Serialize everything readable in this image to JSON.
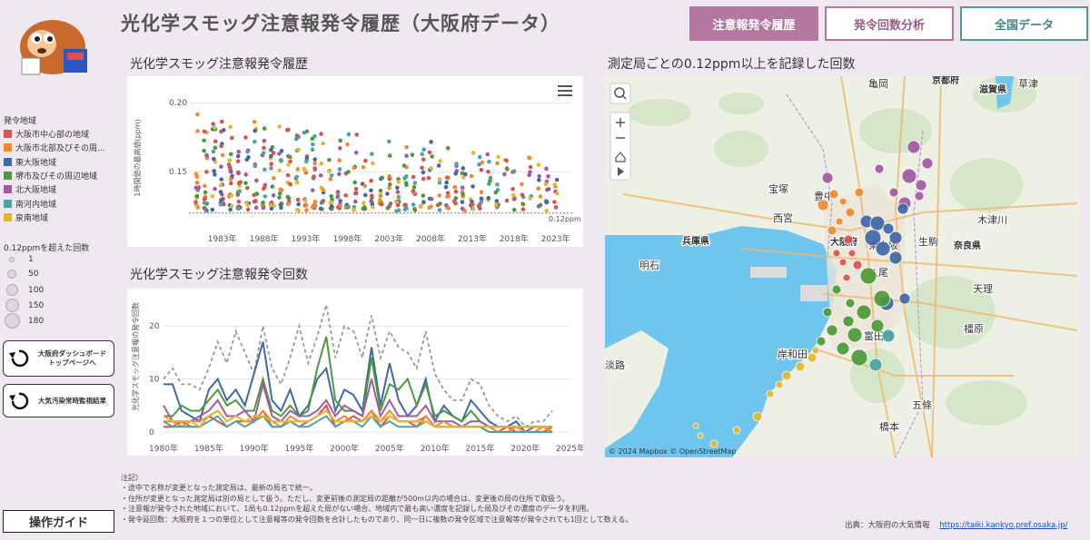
{
  "header": {
    "title": "光化学スモッグ注意報発令履歴（大阪府データ）",
    "nav": [
      "注意報発令履歴",
      "発令回数分析",
      "全国データ"
    ]
  },
  "legend": {
    "region_title": "発令地域",
    "regions": [
      {
        "label": "大阪市中心部の地域",
        "color": "#d9534f"
      },
      {
        "label": "大阪市北部及びその周...",
        "color": "#f0892f"
      },
      {
        "label": "東大阪地域",
        "color": "#3f68a8"
      },
      {
        "label": "堺市及びその周辺地域",
        "color": "#4e9a3a"
      },
      {
        "label": "北大阪地域",
        "color": "#a25aa2"
      },
      {
        "label": "南河内地域",
        "color": "#4aa6a3"
      },
      {
        "label": "泉南地域",
        "color": "#e6b72e"
      }
    ],
    "size_title": "0.12ppmを超えた回数",
    "sizes": [
      "1",
      "50",
      "100",
      "150",
      "180"
    ]
  },
  "side_buttons": {
    "dashboard": "大阪府ダッシュボード\nトップページへ",
    "monitoring": "大気汚染常時監視結果",
    "guide": "操作ガイド"
  },
  "scatter": {
    "title": "光化学スモッグ注意報発令履歴",
    "ylabel": "1時間値の最高値(ppm)",
    "threshold_label": "0.12ppm"
  },
  "line": {
    "title": "光化学スモッグ注意報発令回数",
    "ylabel": "光化学スモッグ注意報の発令回数"
  },
  "map": {
    "title": "測定局ごとの0.12ppm以上を記録した回数",
    "attribution": "© 2024 Mapbox  © OpenStreetMap",
    "places": [
      {
        "label": "亀岡",
        "bold": false
      },
      {
        "label": "京都府",
        "bold": true
      },
      {
        "label": "滋賀県",
        "bold": true
      },
      {
        "label": "草津",
        "bold": false
      },
      {
        "label": "宝塚",
        "bold": false
      },
      {
        "label": "豊中",
        "bold": false
      },
      {
        "label": "西宮",
        "bold": false
      },
      {
        "label": "兵庫県",
        "bold": true
      },
      {
        "label": "大阪府",
        "bold": true
      },
      {
        "label": "東大阪",
        "bold": false
      },
      {
        "label": "生駒",
        "bold": false
      },
      {
        "label": "奈良県",
        "bold": true
      },
      {
        "label": "木津川",
        "bold": false
      },
      {
        "label": "明石",
        "bold": false
      },
      {
        "label": "八尾",
        "bold": false
      },
      {
        "label": "天理",
        "bold": false
      },
      {
        "label": "橿原",
        "bold": false
      },
      {
        "label": "岸和田",
        "bold": false
      },
      {
        "label": "富田林",
        "bold": false
      },
      {
        "label": "淡路",
        "bold": false
      },
      {
        "label": "五條",
        "bold": false
      },
      {
        "label": "橋本",
        "bold": false
      }
    ]
  },
  "notes": [
    "注記）",
    "・途中で名称が変更となった測定局は、最新の局名で統一。",
    "・住所が変更となった測定局は別の局として扱う。ただし、変更前後の測定局の距離が500m以内の場合は、変更後の局の住所で取扱う。",
    "・注意報が発令された地域において、1局も0.12ppmを超えた局がない場合、地域内で最も高い濃度を記録した局及びその濃度のデータを利用。",
    "・発令延回数：大阪府を１つの単位として注意報等の発令回数を合計したものであり、同一日に複数の発令区域で注意報等が発令されても1回として数える。"
  ],
  "source": {
    "label": "出典：大阪府の大気情報",
    "url": "https://taiki.kankyo.pref.osaka.jp/"
  },
  "chart_data": [
    {
      "type": "scatter",
      "title": "光化学スモッグ注意報発令履歴",
      "ylabel": "1時間値の最高値(ppm)",
      "x_ticks": [
        "1983年",
        "1988年",
        "1993年",
        "1998年",
        "2003年",
        "2008年",
        "2013年",
        "2018年",
        "2023年"
      ],
      "xlim": [
        1979,
        2025
      ],
      "y_ticks": [
        0.15,
        0.2
      ],
      "ylim": [
        0.11,
        0.21
      ],
      "threshold": 0.12
    },
    {
      "type": "line",
      "title": "光化学スモッグ注意報発令回数",
      "ylabel": "光化学スモッグ注意報の発令回数",
      "x_ticks": [
        "1980年",
        "1985年",
        "1990年",
        "1995年",
        "2000年",
        "2005年",
        "2010年",
        "2015年",
        "2020年",
        "2025年"
      ],
      "y_ticks": [
        0,
        10,
        20
      ],
      "ylim": [
        0,
        25
      ],
      "x": [
        1980,
        1981,
        1982,
        1983,
        1984,
        1985,
        1986,
        1987,
        1988,
        1989,
        1990,
        1991,
        1992,
        1993,
        1994,
        1995,
        1996,
        1997,
        1998,
        1999,
        2000,
        2001,
        2002,
        2003,
        2004,
        2005,
        2006,
        2007,
        2008,
        2009,
        2010,
        2011,
        2012,
        2013,
        2014,
        2015,
        2016,
        2017,
        2018,
        2019,
        2020,
        2021,
        2022,
        2023
      ],
      "series": [
        {
          "color": "#999999",
          "dashed": true,
          "values": [
            10,
            12,
            9,
            9,
            8,
            12,
            17,
            13,
            19,
            15,
            11,
            20,
            12,
            9,
            14,
            20,
            13,
            18,
            24,
            14,
            20,
            19,
            14,
            22,
            14,
            19,
            16,
            15,
            12,
            19,
            11,
            8,
            6,
            6,
            10,
            9,
            5,
            3,
            2,
            3,
            1,
            2,
            2,
            4
          ]
        },
        {
          "color": "#3f68a8",
          "values": [
            9,
            9,
            4,
            3,
            2,
            8,
            10,
            6,
            8,
            5,
            11,
            17,
            6,
            4,
            8,
            3,
            5,
            10,
            12,
            4,
            8,
            7,
            4,
            16,
            5,
            13,
            6,
            3,
            5,
            10,
            2,
            5,
            3,
            2,
            6,
            4,
            2,
            1,
            1,
            2,
            0,
            1,
            1,
            1
          ]
        },
        {
          "color": "#4e9a3a",
          "values": [
            3,
            3,
            5,
            4,
            4,
            6,
            8,
            5,
            6,
            4,
            4,
            10,
            4,
            3,
            5,
            3,
            4,
            12,
            18,
            6,
            4,
            4,
            3,
            14,
            4,
            9,
            8,
            10,
            5,
            9,
            3,
            4,
            3,
            2,
            4,
            2,
            1,
            1,
            1,
            1,
            1,
            1,
            1,
            1
          ]
        },
        {
          "color": "#a25aa2",
          "values": [
            5,
            2,
            2,
            2,
            3,
            4,
            6,
            3,
            3,
            4,
            2,
            9,
            3,
            2,
            4,
            3,
            3,
            4,
            6,
            3,
            5,
            4,
            3,
            10,
            3,
            6,
            3,
            3,
            3,
            5,
            2,
            2,
            2,
            1,
            2,
            2,
            1,
            1,
            1,
            1,
            0,
            1,
            1,
            1
          ]
        },
        {
          "color": "#d9534f",
          "values": [
            1,
            1,
            2,
            1,
            1,
            3,
            2,
            1,
            2,
            2,
            2,
            4,
            1,
            1,
            2,
            1,
            2,
            3,
            5,
            1,
            2,
            3,
            2,
            4,
            1,
            3,
            2,
            2,
            1,
            3,
            1,
            1,
            1,
            1,
            1,
            1,
            0,
            0,
            1,
            0,
            0,
            0,
            0,
            1
          ]
        },
        {
          "color": "#f0892f",
          "values": [
            2,
            2,
            1,
            2,
            2,
            3,
            4,
            2,
            3,
            2,
            2,
            4,
            2,
            1,
            3,
            2,
            2,
            3,
            4,
            2,
            3,
            2,
            2,
            4,
            2,
            4,
            2,
            2,
            2,
            3,
            1,
            2,
            1,
            1,
            1,
            1,
            1,
            0,
            0,
            1,
            0,
            0,
            1,
            0
          ]
        },
        {
          "color": "#4aa6a3",
          "values": [
            2,
            1,
            1,
            1,
            1,
            2,
            3,
            1,
            2,
            1,
            2,
            3,
            1,
            1,
            2,
            1,
            1,
            2,
            3,
            1,
            2,
            2,
            1,
            3,
            1,
            2,
            1,
            1,
            1,
            2,
            1,
            1,
            1,
            1,
            1,
            1,
            0,
            0,
            0,
            0,
            0,
            0,
            0,
            0
          ]
        },
        {
          "color": "#e6b72e",
          "values": [
            3,
            2,
            2,
            2,
            1,
            3,
            4,
            2,
            3,
            2,
            3,
            3,
            2,
            2,
            2,
            2,
            2,
            3,
            4,
            2,
            2,
            2,
            2,
            3,
            2,
            3,
            2,
            2,
            2,
            2,
            1,
            1,
            1,
            1,
            1,
            1,
            1,
            1,
            1,
            1,
            1,
            1,
            1,
            1
          ]
        }
      ]
    }
  ]
}
